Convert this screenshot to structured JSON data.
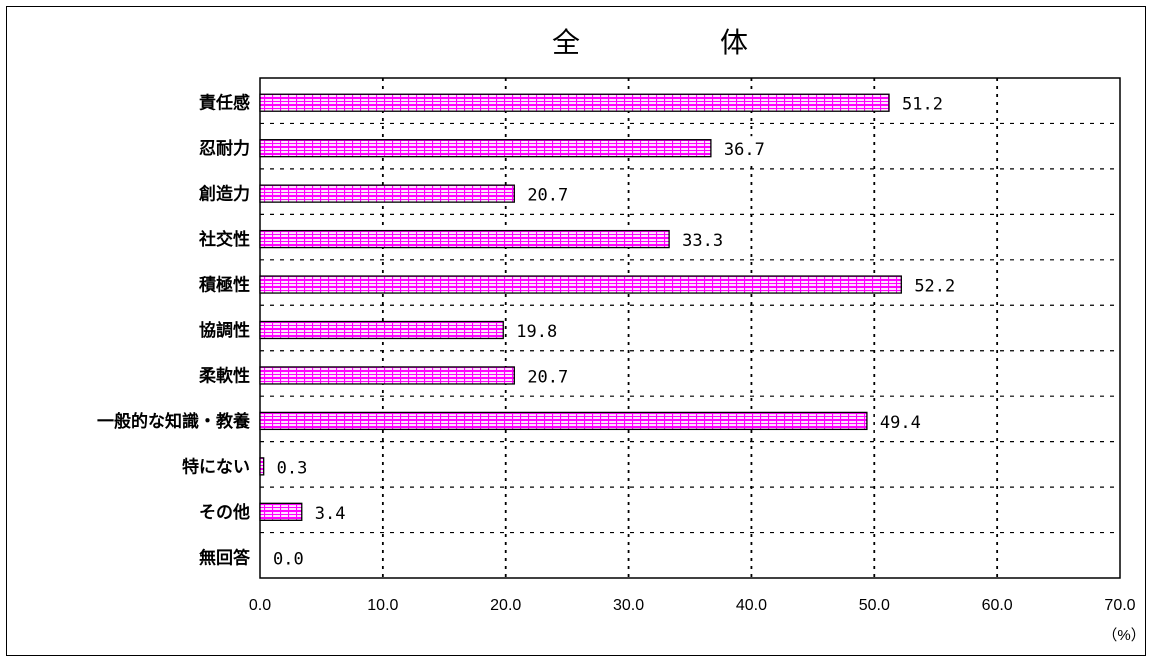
{
  "chart_data": {
    "type": "bar",
    "orientation": "horizontal",
    "title": "全　　　　　体",
    "categories": [
      "責任感",
      "忍耐力",
      "創造力",
      "社交性",
      "積極性",
      "協調性",
      "柔軟性",
      "一般的な知識・教養",
      "特にない",
      "その他",
      "無回答"
    ],
    "values": [
      51.2,
      36.7,
      20.7,
      33.3,
      52.2,
      19.8,
      20.7,
      49.4,
      0.3,
      3.4,
      0.0
    ],
    "value_labels": [
      "51.2",
      "36.7",
      "20.7",
      "33.3",
      "52.2",
      "19.8",
      "20.7",
      "49.4",
      "0.3",
      "3.4",
      "0.0"
    ],
    "xlim": [
      0,
      70
    ],
    "x_ticks": [
      "0.0",
      "10.0",
      "20.0",
      "30.0",
      "40.0",
      "50.0",
      "60.0",
      "70.0"
    ],
    "unit": "（%）",
    "grid": true,
    "grid_style": "dotted",
    "bar_color": "#ff00ff",
    "bar_border_color": "#000000"
  }
}
